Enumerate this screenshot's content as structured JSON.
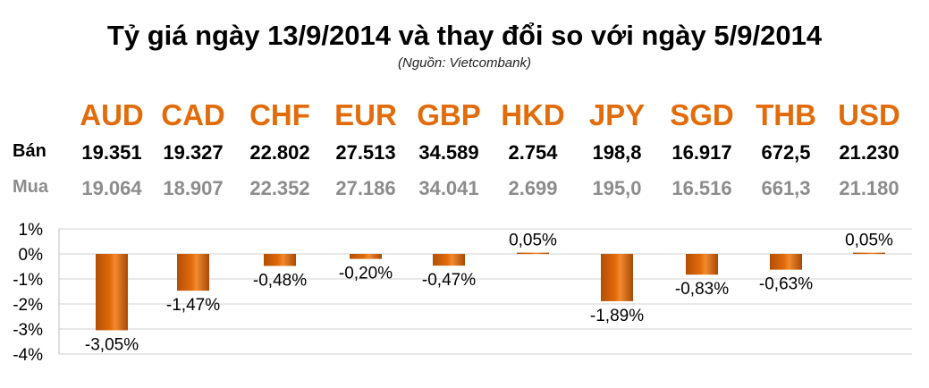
{
  "header": {
    "title": "Tỷ giá ngày 13/9/2014 và thay đổi so với ngày 5/9/2014",
    "source": "(Nguồn: Vietcombank)"
  },
  "rates": {
    "sell_label": "Bán",
    "buy_label": "Mua",
    "currencies": [
      {
        "code": "AUD",
        "sell": "19.351",
        "buy": "19.064"
      },
      {
        "code": "CAD",
        "sell": "19.327",
        "buy": "18.907"
      },
      {
        "code": "CHF",
        "sell": "22.802",
        "buy": "22.352"
      },
      {
        "code": "EUR",
        "sell": "27.513",
        "buy": "27.186"
      },
      {
        "code": "GBP",
        "sell": "34.589",
        "buy": "34.041"
      },
      {
        "code": "HKD",
        "sell": "2.754",
        "buy": "2.699"
      },
      {
        "code": "JPY",
        "sell": "198,8",
        "buy": "195,0"
      },
      {
        "code": "SGD",
        "sell": "16.917",
        "buy": "16.516"
      },
      {
        "code": "THB",
        "sell": "672,5",
        "buy": "661,3"
      },
      {
        "code": "USD",
        "sell": "21.230",
        "buy": "21.180"
      }
    ]
  },
  "chart_data": {
    "type": "bar",
    "categories": [
      "AUD",
      "CAD",
      "CHF",
      "EUR",
      "GBP",
      "HKD",
      "JPY",
      "SGD",
      "THB",
      "USD"
    ],
    "values": [
      -3.05,
      -1.47,
      -0.48,
      -0.2,
      -0.47,
      0.05,
      -1.89,
      -0.83,
      -0.63,
      0.05
    ],
    "data_labels": [
      "-3,05%",
      "-1,47%",
      "-0,48%",
      "-0,20%",
      "-0,47%",
      "0,05%",
      "-1,89%",
      "-0,83%",
      "-0,63%",
      "0,05%"
    ],
    "yticks": [
      1,
      0,
      -1,
      -2,
      -3,
      -4
    ],
    "ytick_labels": [
      "1%",
      "0%",
      "-1%",
      "-2%",
      "-3%",
      "-4%"
    ],
    "ylim": [
      -4,
      1
    ],
    "grid": true,
    "bar_color": "#e26b0a",
    "accent_color": "#e26b0a"
  }
}
